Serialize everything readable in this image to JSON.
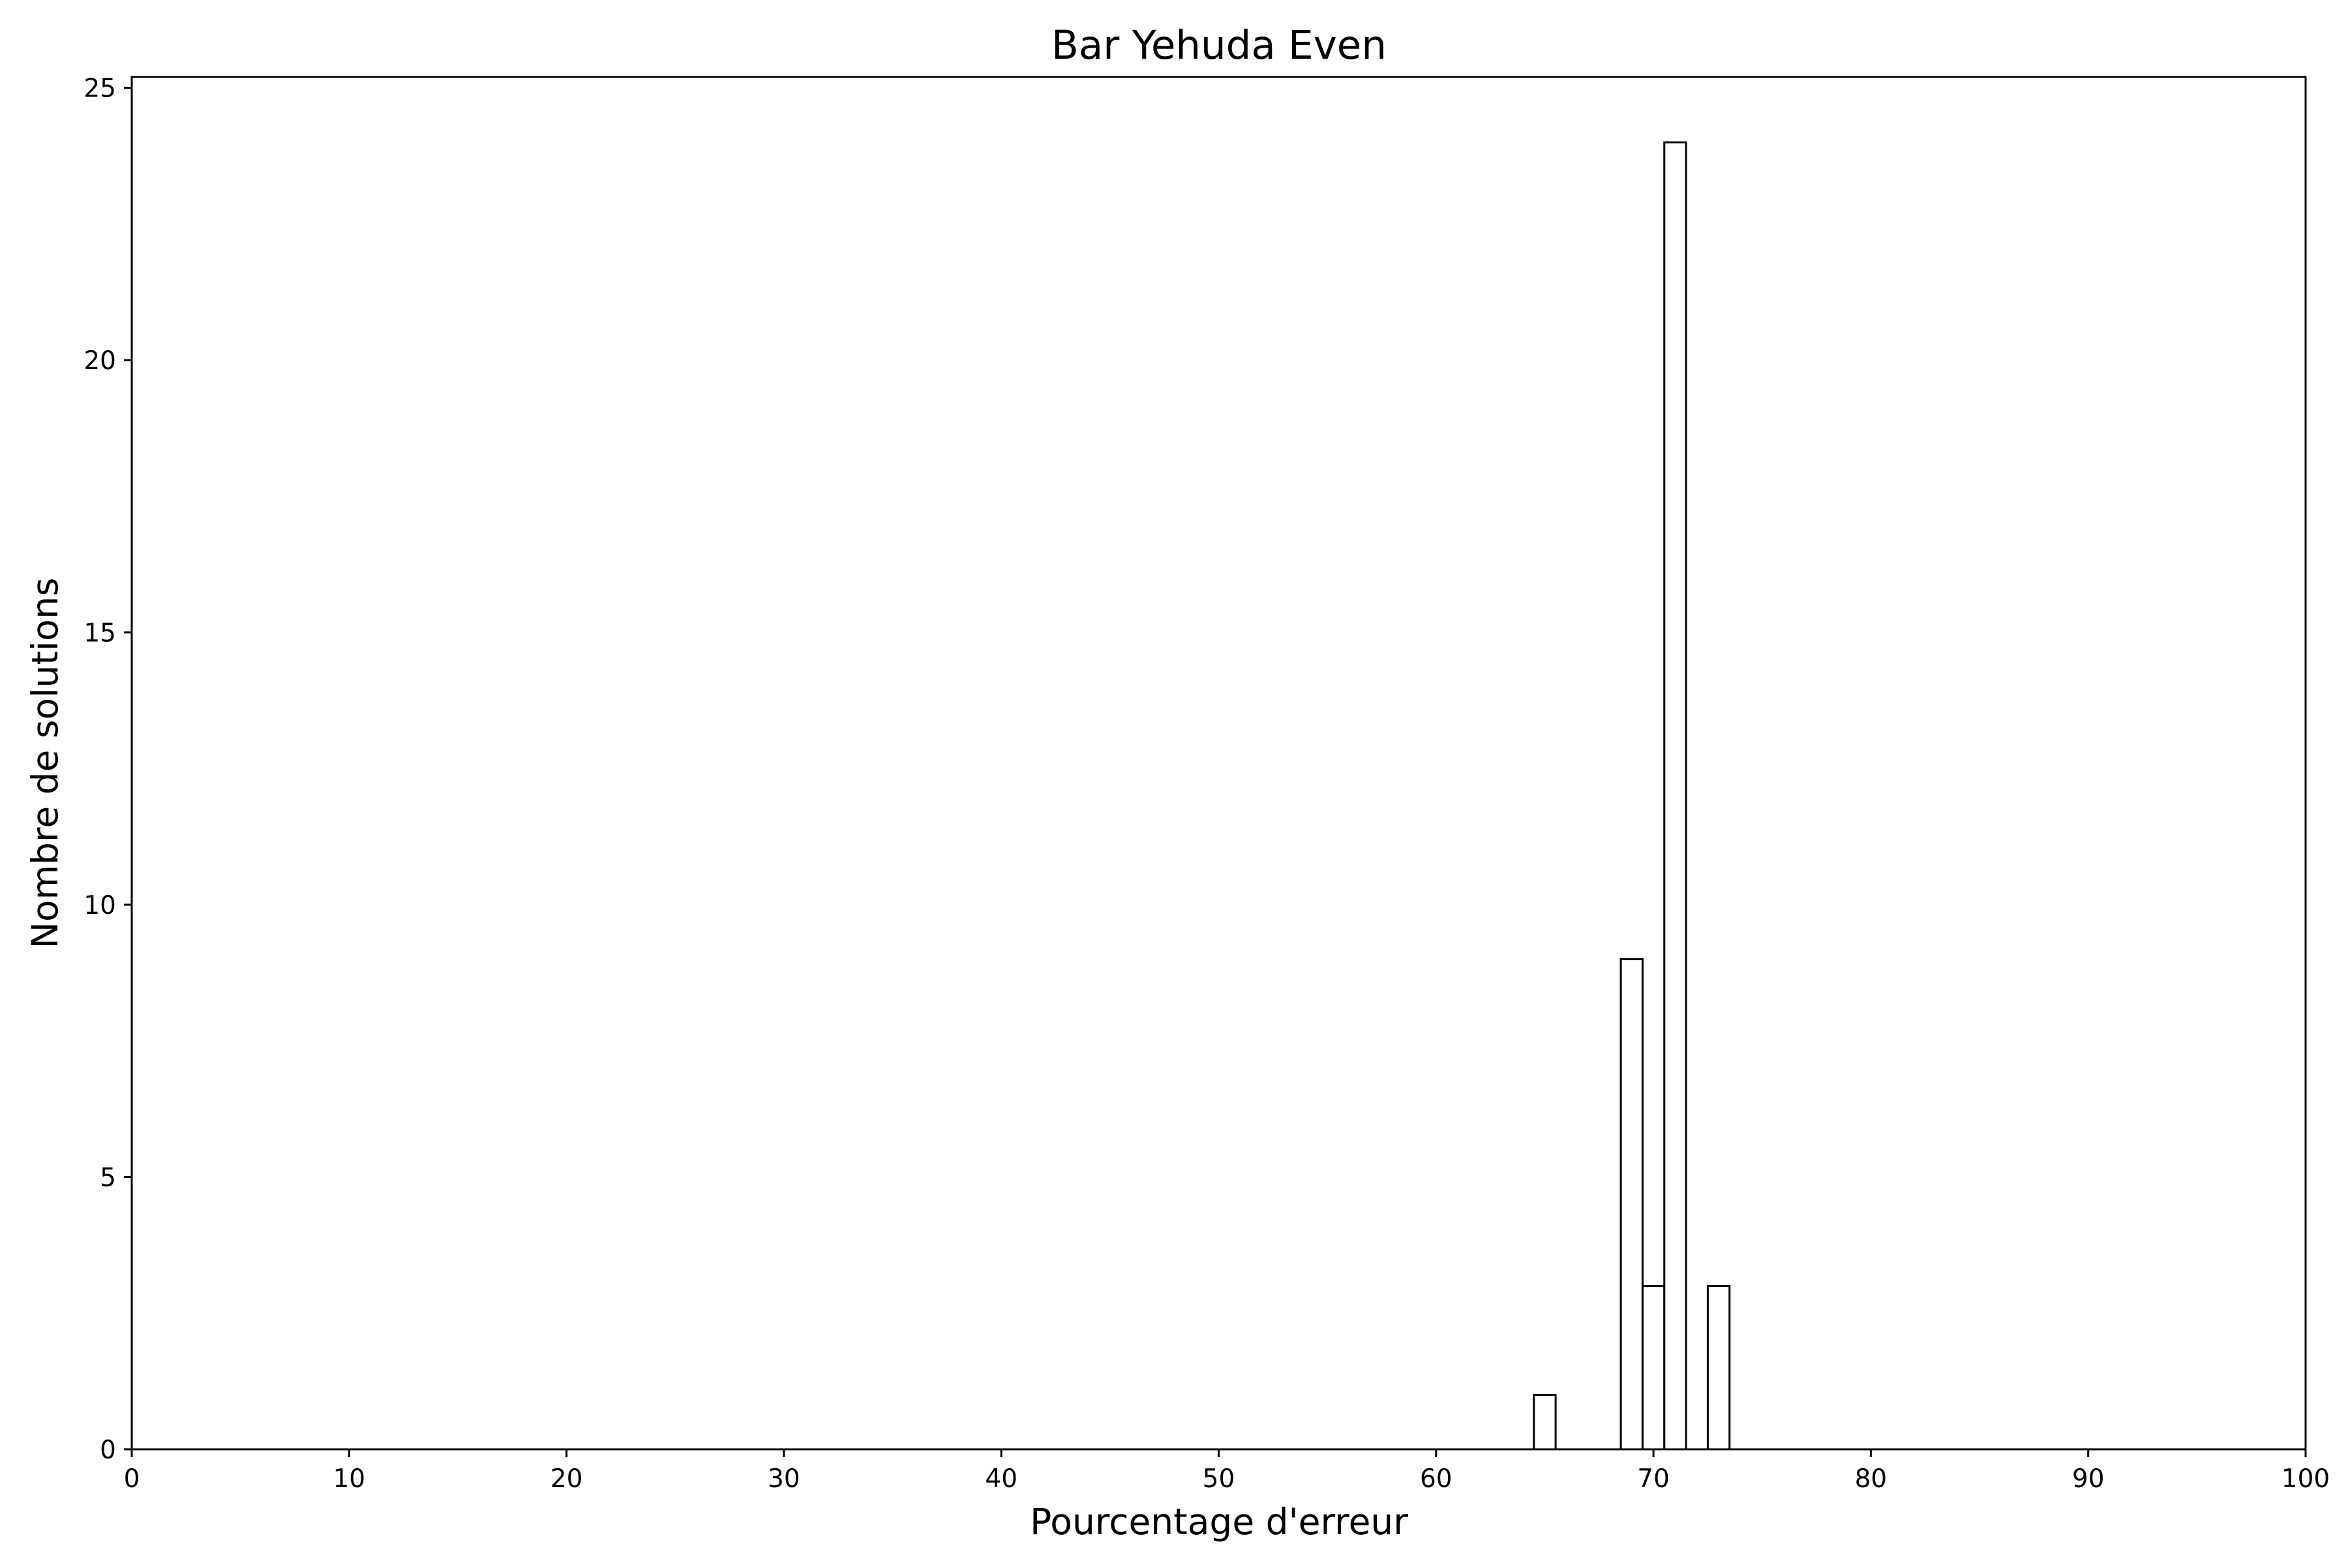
{
  "chart_data": {
    "type": "bar",
    "title": "Bar Yehuda Even",
    "xlabel": "Pourcentage d'erreur",
    "ylabel": "Nombre de solutions",
    "xlim": [
      0,
      100
    ],
    "ylim": [
      0,
      25.2
    ],
    "xticks": [
      0,
      10,
      20,
      30,
      40,
      50,
      60,
      70,
      80,
      90,
      100
    ],
    "yticks": [
      0,
      5,
      10,
      15,
      20,
      25
    ],
    "grid": false,
    "legend": "none",
    "bar_width": 1,
    "bars": [
      {
        "x": 65,
        "value": 1
      },
      {
        "x": 69,
        "value": 9
      },
      {
        "x": 70,
        "value": 3
      },
      {
        "x": 71,
        "value": 24
      },
      {
        "x": 73,
        "value": 3
      }
    ],
    "colors": {
      "bar_fill": "#ffffff",
      "bar_edge": "#000000",
      "axis": "#000000",
      "background": "#ffffff"
    }
  }
}
